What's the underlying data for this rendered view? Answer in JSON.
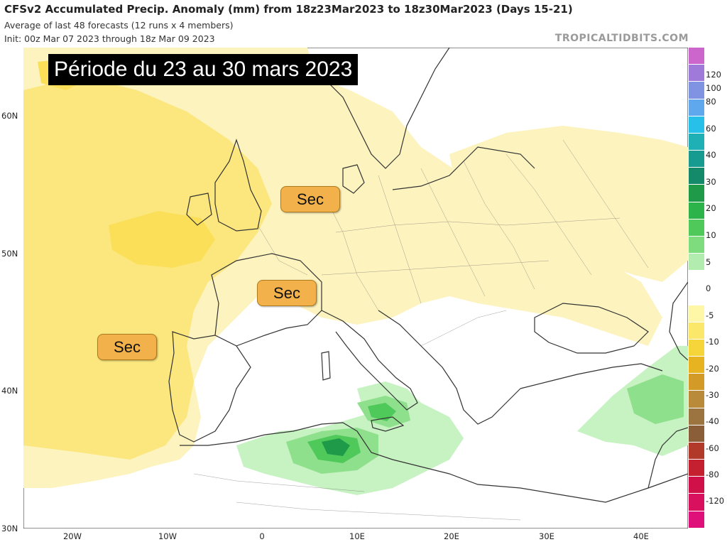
{
  "header": {
    "title": "CFSv2 Accumulated Precip. Anomaly (mm) from 18z23Mar2023 to 18z30Mar2023 (Days 15-21)",
    "subtitle_1": "Average of last 48 forecasts (12 runs x 4 members)",
    "subtitle_2": "Init: 00z Mar 07 2023 through 18z Mar 09 2023",
    "brand": "TROPICALTIDBITS.COM"
  },
  "overlay": {
    "period_title": "Période du 23 au 30 mars 2023",
    "labels": [
      {
        "id": "north-sea",
        "text": "Sec"
      },
      {
        "id": "france",
        "text": "Sec"
      },
      {
        "id": "atlantic",
        "text": "Sec"
      }
    ]
  },
  "axes": {
    "lat_labels": [
      "60N",
      "50N",
      "40N",
      "30N"
    ],
    "lon_labels": [
      "20W",
      "10W",
      "0",
      "10E",
      "20E",
      "30E",
      "40E"
    ]
  },
  "colorbar": {
    "labels": [
      "120",
      "100",
      "80",
      "60",
      "40",
      "30",
      "20",
      "10",
      "5",
      "0",
      "-5",
      "-10",
      "-20",
      "-30",
      "-40",
      "-60",
      "-80",
      "-120"
    ],
    "segments": [
      "#cc66cc",
      "#a07ad8",
      "#7f93e2",
      "#5fa8ee",
      "#27c0e8",
      "#1fb0b5",
      "#179a8f",
      "#148a6a",
      "#1e9a48",
      "#2cb44a",
      "#4ec95a",
      "#7edb7e",
      "#b2ecae",
      "#ffffff",
      "#ffffff",
      "#fff7a8",
      "#fbe76a",
      "#f6d53a",
      "#e8b320",
      "#d49a28",
      "#b88a3a",
      "#9c7440",
      "#8a5e38",
      "#b23a2a",
      "#c42030",
      "#d01048",
      "#d8105e",
      "#e0107a"
    ]
  },
  "map": {
    "colors": {
      "sea": "#ffffff",
      "dry_light": "#fdf3bf",
      "dry_mid": "#fbe77e",
      "dry_strong": "#fbdf58",
      "wet_light": "#c7f2c2",
      "wet_mid": "#8fe08c",
      "wet_strong": "#4ec95a",
      "wet_core": "#1e9a48",
      "border": "#333333"
    }
  }
}
